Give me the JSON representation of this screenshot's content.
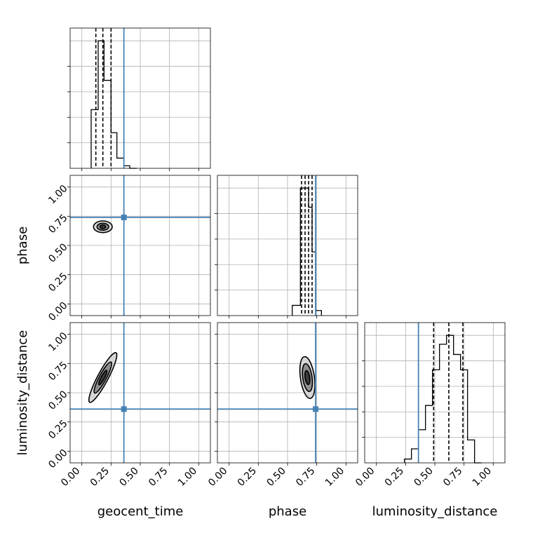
{
  "chart_data": {
    "type": "corner",
    "parameters": [
      "geocent_time",
      "phase",
      "luminosity_distance"
    ],
    "axis_range": [
      -0.1,
      1.1
    ],
    "tick_values": [
      0.0,
      0.25,
      0.5,
      0.75,
      1.0
    ],
    "tick_labels": [
      "0.00",
      "0.25",
      "0.50",
      "0.75",
      "1.00"
    ],
    "grid": true,
    "truth_color": "#4682b4",
    "truths": {
      "geocent_time": 0.36,
      "phase": 0.74,
      "luminosity_distance": 0.36
    },
    "histograms": [
      {
        "parameter": "geocent_time",
        "edges": [
          0.08,
          0.14,
          0.19,
          0.25,
          0.3,
          0.36,
          0.41,
          0.47
        ],
        "counts": [
          0.46,
          1.0,
          0.69,
          0.28,
          0.08,
          0.02,
          0.0
        ],
        "quantiles": [
          0.12,
          0.18,
          0.25
        ],
        "ylim": [
          0,
          1.1
        ]
      },
      {
        "parameter": "phase",
        "edges": [
          0.54,
          0.61,
          0.64,
          0.68,
          0.71,
          0.74,
          0.79
        ],
        "counts": [
          0.08,
          1.0,
          1.0,
          0.85,
          0.5,
          0.04
        ],
        "quantiles": [
          0.62,
          0.65,
          0.68,
          0.71
        ],
        "ylim": [
          0,
          1.1
        ]
      },
      {
        "parameter": "luminosity_distance",
        "edges": [
          0.24,
          0.3,
          0.36,
          0.42,
          0.48,
          0.54,
          0.6,
          0.66,
          0.72,
          0.78,
          0.84,
          0.9
        ],
        "counts": [
          0.03,
          0.11,
          0.26,
          0.45,
          0.73,
          0.93,
          1.0,
          0.85,
          0.73,
          0.18,
          0.0
        ],
        "quantiles": [
          0.49,
          0.62,
          0.74
        ],
        "ylim": [
          0,
          1.1
        ]
      }
    ],
    "joint": [
      {
        "x": "geocent_time",
        "y": "phase",
        "center": [
          0.18,
          0.66
        ],
        "contours": [
          {
            "rx": 0.08,
            "ry": 0.05,
            "rot": 0
          },
          {
            "rx": 0.05,
            "ry": 0.03,
            "rot": 0
          },
          {
            "rx": 0.025,
            "ry": 0.015,
            "rot": 0
          }
        ]
      },
      {
        "x": "geocent_time",
        "y": "luminosity_distance",
        "center": [
          0.18,
          0.63
        ],
        "contours": [
          {
            "rx": 0.24,
            "ry": 0.045,
            "rot": -62
          },
          {
            "rx": 0.15,
            "ry": 0.03,
            "rot": -62
          },
          {
            "rx": 0.07,
            "ry": 0.015,
            "rot": -62
          }
        ]
      },
      {
        "x": "phase",
        "y": "luminosity_distance",
        "center": [
          0.67,
          0.63
        ],
        "contours": [
          {
            "rx": 0.06,
            "ry": 0.18,
            "rot": -8
          },
          {
            "rx": 0.04,
            "ry": 0.12,
            "rot": -8
          },
          {
            "rx": 0.02,
            "ry": 0.06,
            "rot": -8
          }
        ]
      }
    ]
  }
}
